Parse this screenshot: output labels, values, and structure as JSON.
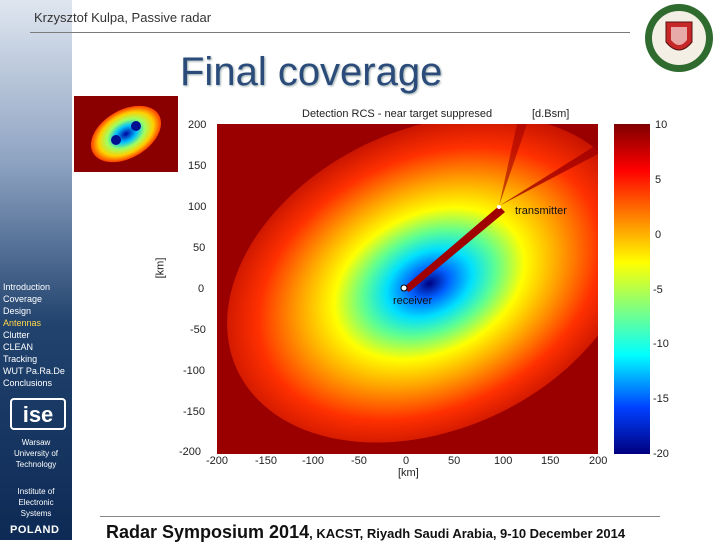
{
  "header": {
    "author": "Krzysztof Kulpa, Passive radar"
  },
  "slide": {
    "title": "Final coverage"
  },
  "nav": {
    "items": [
      "Introduction",
      "Coverage",
      "Design",
      "Antennas",
      "Clutter",
      "CLEAN",
      "Tracking",
      "WUT Pa.Ra.De",
      "Conclusions"
    ],
    "active_index": 3
  },
  "org": {
    "logo_text": "ise",
    "university": [
      "Warsaw",
      "University of",
      "Technology"
    ],
    "institute": [
      "Institute of",
      "Electronic",
      "Systems"
    ],
    "country": "POLAND"
  },
  "plot": {
    "title": "Detection RCS  - near target suppresed",
    "colorbar_unit": "[d.Bsm]",
    "colorbar_ticks": [
      "10",
      "5",
      "0",
      "-5",
      "-10",
      "-15",
      "-20"
    ],
    "y_ticks": [
      "200",
      "150",
      "100",
      "50",
      "0",
      "-50",
      "-100",
      "-150",
      "-200"
    ],
    "x_ticks": [
      "-200",
      "-150",
      "-100",
      "-50",
      "0",
      "50",
      "100",
      "150",
      "200"
    ],
    "ylabel": "[km]",
    "xlabel": "[km]",
    "transmitter_label": "transmitter",
    "receiver_label": "receiver"
  },
  "footer": {
    "event": "Radar Symposium 2014",
    "detail": ", KACST, Riyadh  Saudi Arabia,  9-10 December 2014"
  },
  "colors": {
    "title": "#2b4b7a",
    "sidebar_top": "#dfe6ef",
    "sidebar_bottom": "#0d2a55",
    "nav_active": "#ffd84a"
  }
}
